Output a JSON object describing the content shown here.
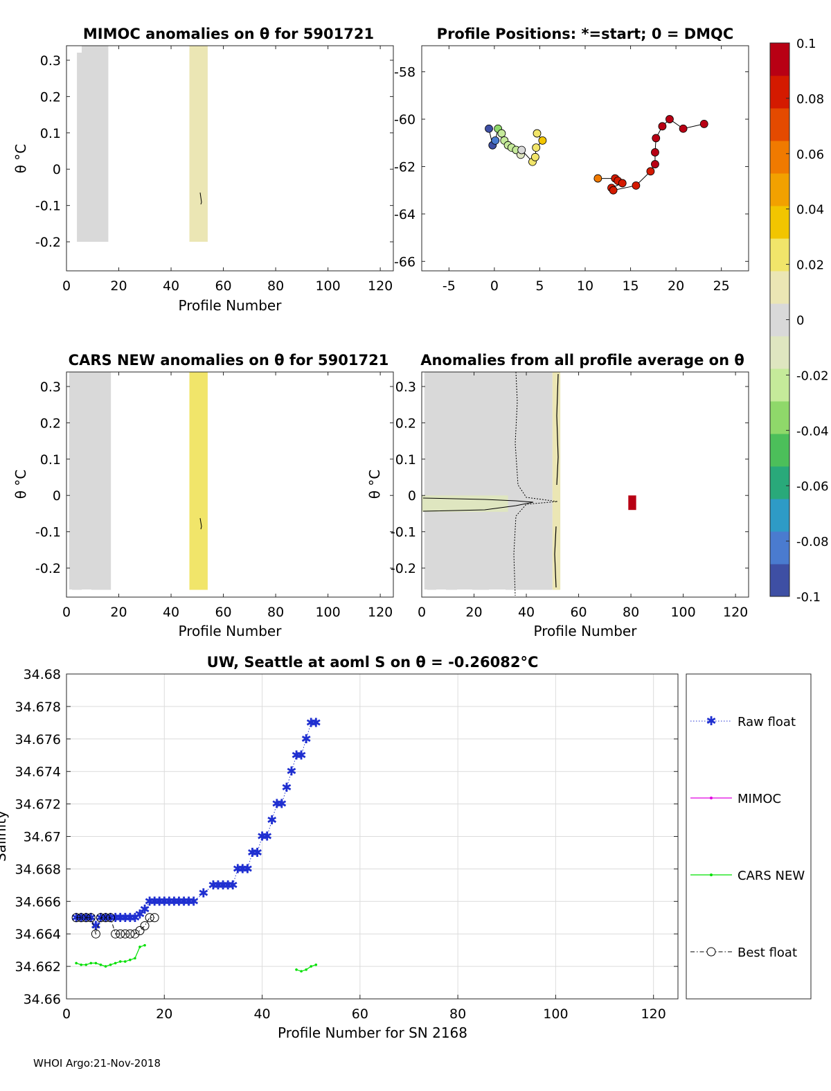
{
  "footer": "WHOI Argo:21-Nov-2018",
  "chart_data": [
    {
      "type": "heatmap",
      "id": "mimoc",
      "title": "MIMOC anomalies on θ  for 5901721",
      "xlabel": "Profile Number",
      "ylabel": "θ °C",
      "xlim": [
        0,
        125
      ],
      "ylim": [
        -0.28,
        0.34
      ],
      "xticks": [
        "0",
        "20",
        "40",
        "60",
        "80",
        "100",
        "120"
      ],
      "yticks": [
        "-0.2",
        "-0.1",
        "0",
        "0.1",
        "0.2",
        "0.3"
      ],
      "blocks": [
        {
          "x": [
            4,
            16
          ],
          "y": [
            -0.2,
            0.34
          ],
          "anomaly": 0.005
        },
        {
          "x": [
            47,
            54
          ],
          "y": [
            -0.2,
            0.34
          ],
          "anomaly": 0.017
        }
      ]
    },
    {
      "type": "scatter",
      "id": "positions",
      "title": "Profile Positions: *=start; 0 = DMQC",
      "xlim": [
        -8,
        28
      ],
      "ylim": [
        -66.4,
        -56.9
      ],
      "xticks": [
        "-5",
        "0",
        "5",
        "10",
        "15",
        "20",
        "25"
      ],
      "yticks": [
        "-58",
        "-60",
        "-62",
        "-64",
        "-66"
      ],
      "points": [
        {
          "lon": -0.6,
          "lat": -60.4,
          "v": -0.1
        },
        {
          "lon": -0.2,
          "lat": -61.1,
          "v": -0.09
        },
        {
          "lon": 0.1,
          "lat": -60.9,
          "v": -0.085
        },
        {
          "lon": 0.4,
          "lat": -60.4,
          "v": -0.03
        },
        {
          "lon": 0.8,
          "lat": -60.6,
          "v": -0.028
        },
        {
          "lon": 1.1,
          "lat": -60.9,
          "v": -0.026
        },
        {
          "lon": 1.5,
          "lat": -61.1,
          "v": -0.024
        },
        {
          "lon": 1.9,
          "lat": -61.2,
          "v": -0.022
        },
        {
          "lon": 2.4,
          "lat": -61.3,
          "v": -0.02
        },
        {
          "lon": 2.9,
          "lat": -61.5,
          "v": -0.01
        },
        {
          "lon": 3.0,
          "lat": -61.3,
          "v": 0.0
        },
        {
          "lon": 4.2,
          "lat": -61.8,
          "v": 0.024
        },
        {
          "lon": 4.5,
          "lat": -61.6,
          "v": 0.026
        },
        {
          "lon": 4.6,
          "lat": -61.2,
          "v": 0.028
        },
        {
          "lon": 5.3,
          "lat": -60.9,
          "v": 0.03
        },
        {
          "lon": 4.7,
          "lat": -60.6,
          "v": 0.028
        },
        {
          "lon": 11.4,
          "lat": -62.5,
          "v": 0.06
        },
        {
          "lon": 13.3,
          "lat": -62.5,
          "v": 0.08
        },
        {
          "lon": 13.6,
          "lat": -62.6,
          "v": 0.082
        },
        {
          "lon": 14.1,
          "lat": -62.7,
          "v": 0.085
        },
        {
          "lon": 12.9,
          "lat": -62.9,
          "v": 0.086
        },
        {
          "lon": 13.1,
          "lat": -63.0,
          "v": 0.088
        },
        {
          "lon": 15.6,
          "lat": -62.8,
          "v": 0.085
        },
        {
          "lon": 17.2,
          "lat": -62.2,
          "v": 0.086
        },
        {
          "lon": 17.7,
          "lat": -61.9,
          "v": 0.09
        },
        {
          "lon": 17.7,
          "lat": -61.4,
          "v": 0.09
        },
        {
          "lon": 17.8,
          "lat": -60.8,
          "v": 0.092
        },
        {
          "lon": 18.5,
          "lat": -60.3,
          "v": 0.094
        },
        {
          "lon": 19.3,
          "lat": -60.0,
          "v": 0.095
        },
        {
          "lon": 20.8,
          "lat": -60.4,
          "v": 0.097
        },
        {
          "lon": 23.1,
          "lat": -60.2,
          "v": 0.1
        }
      ]
    },
    {
      "type": "heatmap",
      "id": "cars",
      "title": "CARS NEW anomalies on θ for 5901721",
      "xlabel": "Profile Number",
      "ylabel": "θ °C",
      "xlim": [
        0,
        125
      ],
      "ylim": [
        -0.28,
        0.34
      ],
      "xticks": [
        "0",
        "20",
        "40",
        "60",
        "80",
        "100",
        "120"
      ],
      "yticks": [
        "-0.2",
        "-0.1",
        "0",
        "0.1",
        "0.2",
        "0.3"
      ],
      "blocks": [
        {
          "x": [
            1,
            17
          ],
          "y": [
            -0.26,
            0.34
          ],
          "anomaly": 0.004
        },
        {
          "x": [
            47,
            54
          ],
          "y": [
            -0.26,
            0.34
          ],
          "anomaly": 0.018
        }
      ]
    },
    {
      "type": "heatmap",
      "id": "allprof",
      "title": "Anomalies from all profile average on θ",
      "xlabel": "Profile Number",
      "ylabel": "θ °C",
      "xlim": [
        0,
        125
      ],
      "ylim": [
        -0.28,
        0.34
      ],
      "xticks": [
        "0",
        "20",
        "40",
        "60",
        "80",
        "100",
        "120"
      ],
      "yticks": [
        "-0.2",
        "-0.1",
        "0",
        "0.1",
        "0.2",
        "0.3"
      ],
      "blocks": [
        {
          "x": [
            1,
            50
          ],
          "y": [
            -0.26,
            0.34
          ],
          "anomaly": 0.003
        },
        {
          "x": [
            50,
            53
          ],
          "y": [
            -0.26,
            0.34
          ],
          "anomaly": 0.015
        },
        {
          "x": [
            0,
            33
          ],
          "y": [
            -0.045,
            0.0
          ],
          "anomaly": -0.012
        },
        {
          "x": [
            79,
            82
          ],
          "y": [
            -0.04,
            -0.0
          ],
          "anomaly": 0.1
        }
      ]
    },
    {
      "type": "line",
      "id": "salinity",
      "title": "UW, Seattle at aoml S on θ = -0.26082°C",
      "xlabel": "Profile Number for SN 2168",
      "ylabel": "Salinity",
      "xlim": [
        0,
        125
      ],
      "ylim": [
        34.66,
        34.68
      ],
      "xticks": [
        "0",
        "20",
        "40",
        "60",
        "80",
        "100",
        "120"
      ],
      "yticks": [
        "34.66",
        "34.662",
        "34.664",
        "34.666",
        "34.668",
        "34.67",
        "34.672",
        "34.674",
        "34.676",
        "34.678",
        "34.68"
      ],
      "legend": [
        "Raw float",
        "MIMOC",
        "CARS NEW",
        "Best float"
      ],
      "series": [
        {
          "name": "Raw float",
          "x": [
            2,
            3,
            4,
            5,
            6,
            7,
            8,
            9,
            10,
            11,
            12,
            13,
            14,
            15,
            16,
            17,
            18,
            19,
            20,
            21,
            22,
            23,
            24,
            25,
            26,
            28,
            30,
            31,
            32,
            33,
            34,
            35,
            36,
            37,
            38,
            39,
            40,
            41,
            42,
            43,
            44,
            45,
            46,
            47,
            48,
            49,
            50,
            51
          ],
          "y": [
            34.665,
            34.665,
            34.665,
            34.665,
            34.6645,
            34.665,
            34.665,
            34.665,
            34.665,
            34.665,
            34.665,
            34.665,
            34.665,
            34.6652,
            34.6655,
            34.666,
            34.666,
            34.666,
            34.666,
            34.666,
            34.666,
            34.666,
            34.666,
            34.666,
            34.666,
            34.6665,
            34.667,
            34.667,
            34.667,
            34.667,
            34.667,
            34.668,
            34.668,
            34.668,
            34.669,
            34.669,
            34.67,
            34.67,
            34.671,
            34.672,
            34.672,
            34.673,
            34.674,
            34.675,
            34.675,
            34.676,
            34.677,
            34.677
          ]
        },
        {
          "name": "CARS NEW",
          "x": [
            2,
            3,
            4,
            5,
            6,
            7,
            8,
            9,
            10,
            11,
            12,
            13,
            14,
            15,
            16
          ],
          "y": [
            34.6622,
            34.6621,
            34.6621,
            34.6622,
            34.6622,
            34.6621,
            34.662,
            34.6621,
            34.6622,
            34.6623,
            34.6623,
            34.6624,
            34.6625,
            34.6632,
            34.6633
          ]
        },
        {
          "name": "CARS NEW",
          "x": [
            47,
            48,
            49,
            50,
            51
          ],
          "y": [
            34.6618,
            34.6617,
            34.6618,
            34.662,
            34.6621
          ]
        },
        {
          "name": "Best float",
          "x": [
            2,
            3,
            4,
            5,
            6,
            7,
            8,
            9,
            10,
            11,
            12,
            13,
            14,
            15,
            16,
            17,
            18
          ],
          "y": [
            34.665,
            34.665,
            34.665,
            34.665,
            34.664,
            34.665,
            34.665,
            34.665,
            34.664,
            34.664,
            34.664,
            34.664,
            34.664,
            34.6642,
            34.6645,
            34.665,
            34.665
          ]
        }
      ]
    }
  ],
  "colorbar": {
    "range": [
      -0.1,
      0.1
    ],
    "ticks": [
      "0.1",
      "0.08",
      "0.06",
      "0.04",
      "0.02",
      "0",
      "-0.02",
      "-0.04",
      "-0.06",
      "-0.08",
      "-0.1"
    ],
    "colors": [
      "#3e4fa4",
      "#4a7bcf",
      "#2e9bc6",
      "#29a97a",
      "#4cbf5a",
      "#8fd86a",
      "#c5ea9a",
      "#dfe6c0",
      "#d9d9d9",
      "#ebe6b4",
      "#f1e56a",
      "#f2c500",
      "#f2a100",
      "#f07a00",
      "#e44a00",
      "#d41a00",
      "#b80014"
    ]
  }
}
